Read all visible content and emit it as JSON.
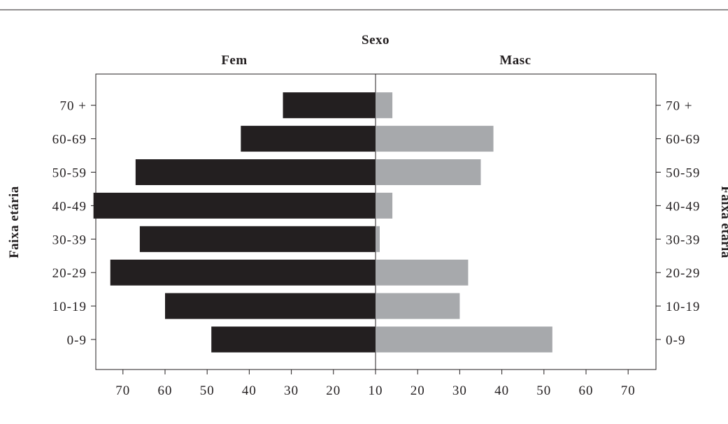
{
  "chart_data": {
    "type": "bar",
    "orientation": "horizontal",
    "layout": "population-pyramid",
    "title": "Sexo",
    "ylabel": "Faixa etária",
    "categories": [
      "0-9",
      "10-19",
      "20-29",
      "30-39",
      "40-49",
      "50-59",
      "60-69",
      "70 +"
    ],
    "series": [
      {
        "name": "Fem",
        "color": "#231f20",
        "values": [
          39,
          50,
          63,
          56,
          67,
          57,
          32,
          22
        ]
      },
      {
        "name": "Masc",
        "color": "#a7a9ac",
        "values": [
          42,
          20,
          22,
          1,
          4,
          25,
          28,
          4
        ]
      }
    ],
    "x_ticks_left": [
      "70",
      "60",
      "50",
      "40",
      "30",
      "20",
      "10"
    ],
    "x_ticks_right": [
      "20",
      "30",
      "40",
      "50",
      "60",
      "70"
    ],
    "grid": false
  }
}
